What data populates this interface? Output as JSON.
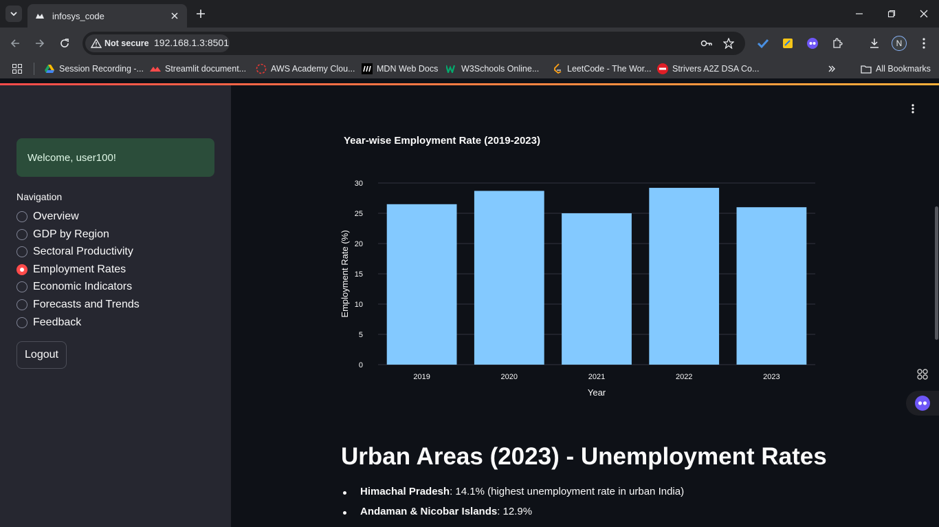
{
  "browser": {
    "tab_title": "infosys_code",
    "security_label": "Not secure",
    "url": "192.168.1.3:8501",
    "profile_initial": "N"
  },
  "bookmarks": [
    {
      "label": "Session Recording -..."
    },
    {
      "label": "Streamlit document..."
    },
    {
      "label": "AWS Academy Clou..."
    },
    {
      "label": "MDN Web Docs"
    },
    {
      "label": "W3Schools Online..."
    },
    {
      "label": "LeetCode - The Wor..."
    },
    {
      "label": "Strivers A2Z DSA Co..."
    }
  ],
  "all_bookmarks_label": "All Bookmarks",
  "sidebar": {
    "welcome": "Welcome, user100!",
    "nav_label": "Navigation",
    "items": [
      {
        "label": "Overview",
        "selected": false
      },
      {
        "label": "GDP by Region",
        "selected": false
      },
      {
        "label": "Sectoral Productivity",
        "selected": false
      },
      {
        "label": "Employment Rates",
        "selected": true
      },
      {
        "label": "Economic Indicators",
        "selected": false
      },
      {
        "label": "Forecasts and Trends",
        "selected": false
      },
      {
        "label": "Feedback",
        "selected": false
      }
    ],
    "logout_label": "Logout"
  },
  "chart_data": {
    "type": "bar",
    "title": "Year-wise Employment Rate (2019-2023)",
    "xlabel": "Year",
    "ylabel": "Employment Rate (%)",
    "categories": [
      "2019",
      "2020",
      "2021",
      "2022",
      "2023"
    ],
    "values": [
      26.5,
      28.7,
      25.0,
      29.2,
      26.0
    ],
    "ylim": [
      0,
      30
    ],
    "yticks": [
      0,
      5,
      10,
      15,
      20,
      25,
      30
    ],
    "bar_color": "#83c9ff",
    "grid": true
  },
  "section": {
    "heading": "Urban Areas (2023) - Unemployment Rates",
    "bullets": [
      {
        "name": "Himachal Pradesh",
        "text": ": 14.1% (highest unemployment rate in urban India)"
      },
      {
        "name": "Andaman & Nicobar Islands",
        "text": ": 12.9%"
      }
    ]
  },
  "colors": {
    "accent": "#ff4b4b",
    "background": "#0e1117",
    "sidebar": "#262730"
  }
}
